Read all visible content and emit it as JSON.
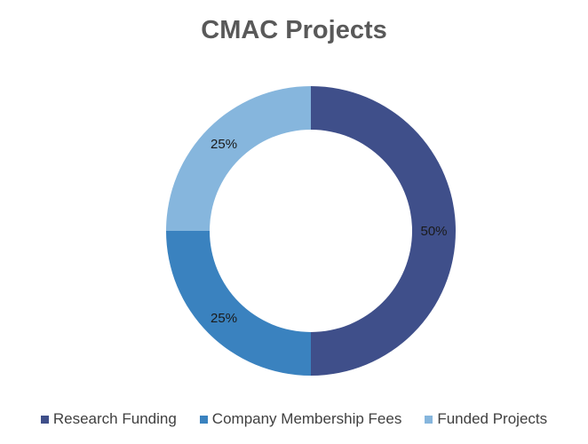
{
  "chart_data": {
    "type": "pie",
    "variant": "donut",
    "title": "CMAC Projects",
    "categories": [
      "Research Funding",
      "Company Membership Fees",
      "Funded Projects"
    ],
    "values": [
      50,
      25,
      25
    ],
    "data_labels": [
      "50%",
      "25%",
      "25%"
    ],
    "colors": [
      "#3f4f8a",
      "#3a82bf",
      "#86b6dd"
    ],
    "legend_position": "bottom"
  }
}
